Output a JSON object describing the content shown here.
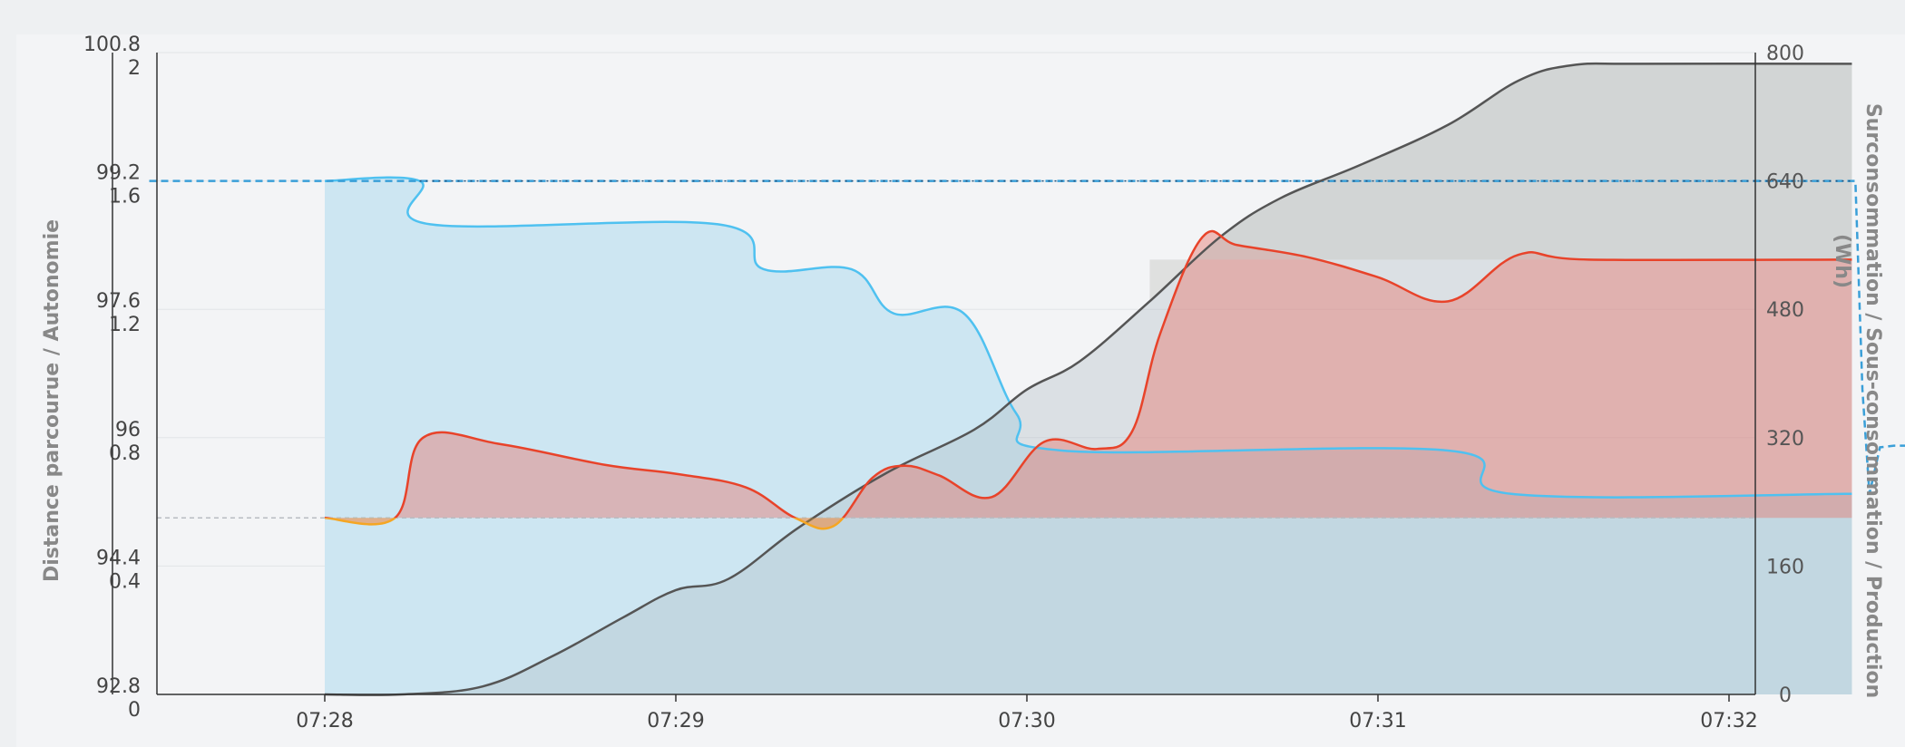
{
  "chart_data": {
    "type": "area",
    "title": "",
    "y_left_label": "Distance parcourue / Autonomie",
    "y_right_label_line1": "Surconsommation / Sous-consommation / Production",
    "y_right_label_line2": "(Wh)",
    "x_ticks": [
      "07:28",
      "07:29",
      "07:30",
      "07:31",
      "07:32"
    ],
    "y_left_outer_ticks": [
      "100.8",
      "99.2",
      "97.6",
      "96",
      "94.4",
      "92.8"
    ],
    "y_left_inner_ticks": [
      "2",
      "1.6",
      "1.2",
      "0.8",
      "0.4",
      "0"
    ],
    "y_left_outer_range": [
      92.8,
      100.8
    ],
    "y_left_inner_range": [
      0,
      2
    ],
    "y_right_ticks": [
      "800",
      "640",
      "480",
      "320",
      "160",
      "0"
    ],
    "y_right_range": [
      0,
      800
    ],
    "grid": true,
    "series": [
      {
        "name": "",
        "axis": "left_outer",
        "color": "#4fc1f0",
        "style": "solid-with-fill",
        "points": [
          [
            0.0,
            99.2
          ],
          [
            0.27,
            99.2
          ],
          [
            0.3,
            98.66
          ],
          [
            1.12,
            98.66
          ],
          [
            1.25,
            98.1
          ],
          [
            1.5,
            98.1
          ],
          [
            1.62,
            97.55
          ],
          [
            1.82,
            97.55
          ],
          [
            1.97,
            96.3
          ],
          [
            2.1,
            95.84
          ],
          [
            3.2,
            95.84
          ],
          [
            3.38,
            95.3
          ],
          [
            4.35,
            95.3
          ]
        ]
      },
      {
        "name": "",
        "axis": "left_outer",
        "color": "#3a9fd8",
        "style": "dashed",
        "points": [
          [
            -0.5,
            99.2
          ],
          [
            4.36,
            99.2
          ],
          [
            4.38,
            96.6
          ],
          [
            4.4,
            95.3
          ],
          [
            4.43,
            95.88
          ],
          [
            4.47,
            95.9
          ],
          [
            4.57,
            95.9
          ]
        ]
      },
      {
        "name": "",
        "axis": "right",
        "color": "#555555",
        "style": "line-with-fill",
        "points": [
          [
            0.0,
            0
          ],
          [
            0.22,
            0
          ],
          [
            0.45,
            10
          ],
          [
            0.65,
            48
          ],
          [
            0.85,
            96
          ],
          [
            1.0,
            130
          ],
          [
            1.15,
            144
          ],
          [
            1.35,
            208
          ],
          [
            1.6,
            276
          ],
          [
            1.85,
            330
          ],
          [
            2.0,
            380
          ],
          [
            2.15,
            415
          ],
          [
            2.35,
            490
          ],
          [
            2.55,
            570
          ],
          [
            2.72,
            618
          ],
          [
            2.95,
            660
          ],
          [
            3.2,
            710
          ],
          [
            3.4,
            765
          ],
          [
            3.55,
            784
          ],
          [
            3.75,
            786
          ],
          [
            4.35,
            786
          ]
        ]
      },
      {
        "name": "",
        "axis": "right",
        "color": "#e8432a",
        "style": "line-with-fill",
        "points": [
          [
            0.0,
            220
          ],
          [
            0.2,
            220
          ],
          [
            0.28,
            320
          ],
          [
            0.5,
            312
          ],
          [
            0.8,
            286
          ],
          [
            1.0,
            275
          ],
          [
            1.2,
            258
          ],
          [
            1.34,
            220
          ],
          [
            1.45,
            210
          ],
          [
            1.56,
            270
          ],
          [
            1.65,
            285
          ],
          [
            1.75,
            273
          ],
          [
            1.9,
            246
          ],
          [
            2.05,
            315
          ],
          [
            2.2,
            306
          ],
          [
            2.3,
            328
          ],
          [
            2.38,
            450
          ],
          [
            2.5,
            570
          ],
          [
            2.6,
            560
          ],
          [
            2.8,
            545
          ],
          [
            3.0,
            520
          ],
          [
            3.2,
            490
          ],
          [
            3.4,
            548
          ],
          [
            3.6,
            542
          ],
          [
            4.35,
            542
          ]
        ]
      }
    ],
    "baseline": {
      "axis": "right",
      "value": 220
    }
  }
}
